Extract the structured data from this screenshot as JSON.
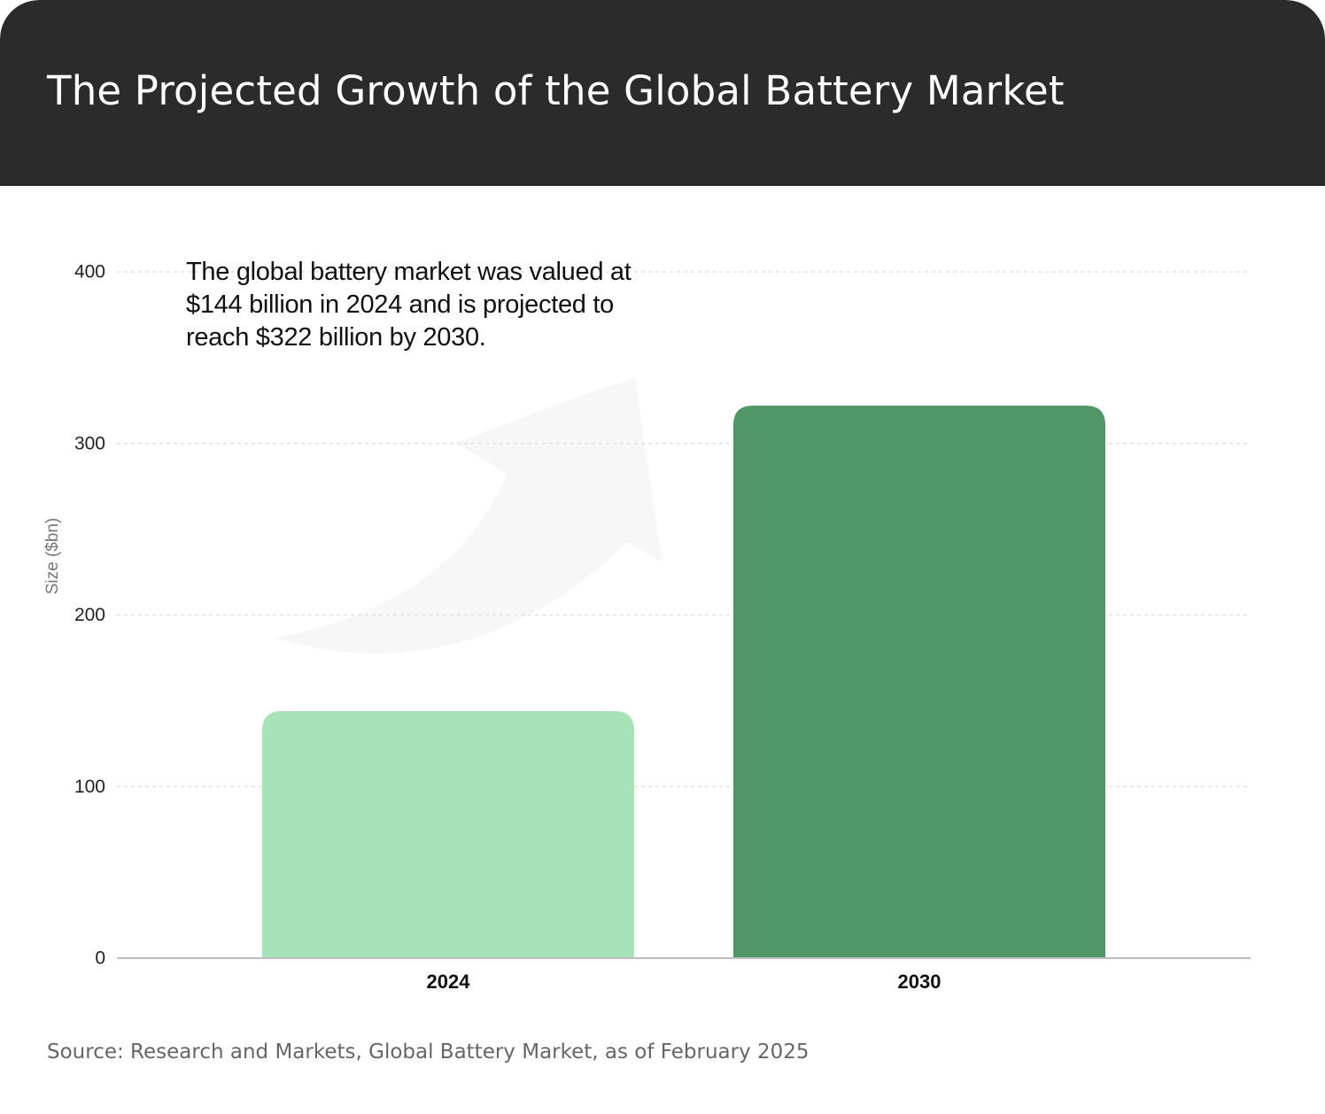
{
  "title": "The Projected Growth of the Global Battery Market",
  "annotation": "The global battery market was valued at $144 billion in 2024 and is projected to reach $322 billion by 2030.",
  "source": "Source: Research and Markets, Global Battery Market, as of February 2025",
  "colors": {
    "header_bg": "#2b2b2b",
    "bar_2024": "#a6e3b9",
    "bar_2030": "#519667",
    "arrow": "#f7f7f7",
    "gridline": "#e2e2e2",
    "axis": "#bdbdbd"
  },
  "chart_data": {
    "type": "bar",
    "categories": [
      "2024",
      "2030"
    ],
    "values": [
      144,
      322
    ],
    "bar_colors": [
      "#a6e3b9",
      "#519667"
    ],
    "title": "The Projected Growth of the Global Battery Market",
    "xlabel": "",
    "ylabel": "Size ($bn)",
    "ylim": [
      0,
      400
    ],
    "yticks": [
      0,
      100,
      200,
      300,
      400
    ],
    "grid": true,
    "grid_style": "dotted horizontal",
    "legend": "none"
  }
}
